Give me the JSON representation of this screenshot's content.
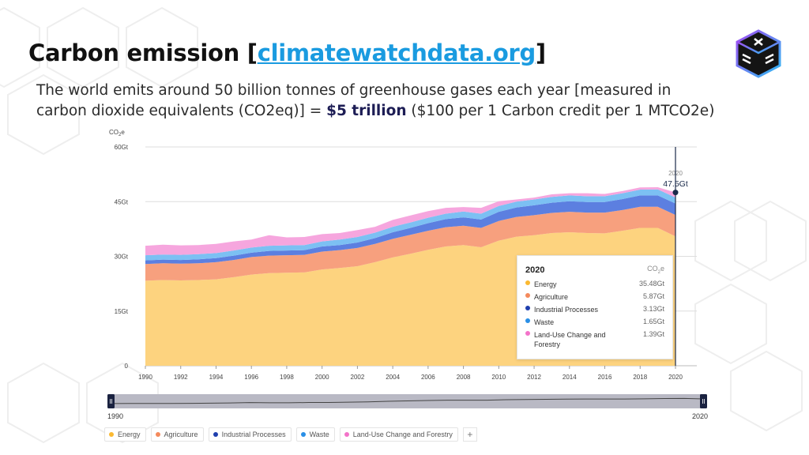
{
  "header": {
    "title_prefix": "Carbon emission [",
    "title_link": "climatewatchdata.org",
    "title_suffix": "]",
    "subtitle_part1": "The world emits around 50 billion tonnes of greenhouse gases each year [measured in carbon dioxide equivalents (CO2eq)] = ",
    "subtitle_bold": "$5 trillion",
    "subtitle_part2": " ($100 per 1 Carbon credit per 1 MTCO2e)"
  },
  "colors": {
    "energy": "#fdd37f",
    "agriculture": "#f7a07e",
    "industrial": "#5c7fe0",
    "waste": "#7cc0f3",
    "land_use": "#f6a6de",
    "title_link": "#1a9be0"
  },
  "chart_data": {
    "type": "area",
    "stacked": true,
    "y_unit_label": "CO2e",
    "ylim": [
      0,
      60
    ],
    "y_ticks": [
      "0",
      "15Gt",
      "30Gt",
      "45Gt",
      "60Gt"
    ],
    "x_ticks": [
      "1990",
      "1992",
      "1994",
      "1996",
      "1998",
      "2000",
      "2002",
      "2004",
      "2006",
      "2008",
      "2010",
      "2012",
      "2014",
      "2016",
      "2018",
      "2020"
    ],
    "x": [
      1990,
      1991,
      1992,
      1993,
      1994,
      1995,
      1996,
      1997,
      1998,
      1999,
      2000,
      2001,
      2002,
      2003,
      2004,
      2005,
      2006,
      2007,
      2008,
      2009,
      2010,
      2011,
      2012,
      2013,
      2014,
      2015,
      2016,
      2017,
      2018,
      2019,
      2020
    ],
    "series": [
      {
        "name": "Energy",
        "color": "#fdd37f",
        "values": [
          23.3,
          23.5,
          23.4,
          23.5,
          23.7,
          24.3,
          25.0,
          25.4,
          25.5,
          25.6,
          26.4,
          26.8,
          27.3,
          28.4,
          29.7,
          30.7,
          31.8,
          32.7,
          33.1,
          32.5,
          34.3,
          35.4,
          35.8,
          36.4,
          36.6,
          36.4,
          36.3,
          37.0,
          37.8,
          37.8,
          35.48
        ]
      },
      {
        "name": "Agriculture",
        "color": "#f7a07e",
        "values": [
          4.6,
          4.6,
          4.6,
          4.6,
          4.7,
          4.7,
          4.8,
          4.8,
          4.8,
          4.8,
          4.9,
          4.9,
          5.0,
          5.0,
          5.1,
          5.2,
          5.2,
          5.3,
          5.3,
          5.3,
          5.4,
          5.4,
          5.5,
          5.5,
          5.6,
          5.6,
          5.7,
          5.7,
          5.8,
          5.8,
          5.87
        ]
      },
      {
        "name": "Industrial Processes",
        "color": "#5c7fe0",
        "values": [
          1.0,
          1.0,
          1.0,
          1.1,
          1.1,
          1.2,
          1.2,
          1.3,
          1.3,
          1.3,
          1.4,
          1.4,
          1.5,
          1.6,
          1.8,
          1.9,
          2.1,
          2.2,
          2.3,
          2.3,
          2.5,
          2.6,
          2.7,
          2.8,
          2.9,
          2.9,
          2.9,
          3.0,
          3.1,
          3.1,
          3.13
        ]
      },
      {
        "name": "Waste",
        "color": "#7cc0f3",
        "values": [
          1.4,
          1.4,
          1.4,
          1.4,
          1.4,
          1.4,
          1.4,
          1.4,
          1.4,
          1.4,
          1.4,
          1.5,
          1.5,
          1.5,
          1.5,
          1.5,
          1.5,
          1.5,
          1.6,
          1.6,
          1.6,
          1.6,
          1.6,
          1.6,
          1.6,
          1.6,
          1.6,
          1.6,
          1.6,
          1.65,
          1.65
        ]
      },
      {
        "name": "Land-Use Change and Forestry",
        "color": "#f6a6de",
        "values": [
          2.6,
          2.7,
          2.6,
          2.5,
          2.5,
          2.5,
          2.2,
          2.9,
          2.2,
          2.2,
          2.0,
          1.8,
          1.9,
          1.6,
          1.9,
          1.9,
          1.8,
          1.6,
          1.2,
          1.6,
          1.3,
          0.6,
          0.5,
          0.7,
          0.6,
          0.8,
          0.6,
          0.6,
          0.6,
          0.6,
          1.39
        ]
      }
    ],
    "highlight": {
      "year_label": "2020",
      "total_label": "47.5Gt"
    },
    "tooltip": {
      "title": "2020",
      "unit": "CO2e",
      "rows": [
        {
          "name": "Energy",
          "value": "35.48Gt",
          "color": "#fdd37f"
        },
        {
          "name": "Agriculture",
          "value": "5.87Gt",
          "color": "#f48a5c"
        },
        {
          "name": "Industrial Processes",
          "value": "3.13Gt",
          "color": "#1f3fae"
        },
        {
          "name": "Waste",
          "value": "1.65Gt",
          "color": "#2a8fe6"
        },
        {
          "name": "Land-Use Change and Forestry",
          "value": "1.39Gt",
          "color": "#f373c9"
        }
      ]
    },
    "slider": {
      "start_label": "1990",
      "end_label": "2020"
    },
    "legend": [
      {
        "name": "Energy",
        "color": "#fbb931"
      },
      {
        "name": "Agriculture",
        "color": "#f48a5c"
      },
      {
        "name": "Industrial Processes",
        "color": "#1f3fae"
      },
      {
        "name": "Waste",
        "color": "#2a8fe6"
      },
      {
        "name": "Land-Use Change and Forestry",
        "color": "#f373c9"
      }
    ]
  }
}
